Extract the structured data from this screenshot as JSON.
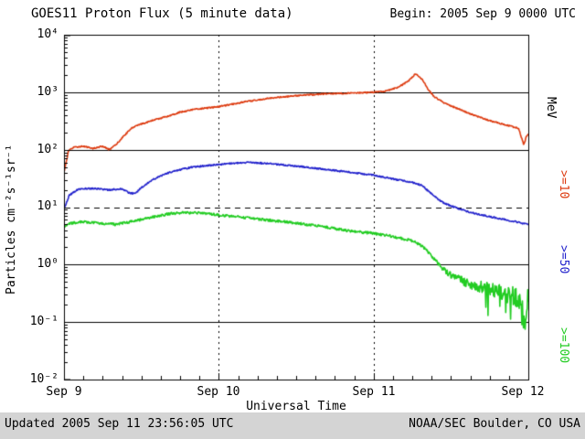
{
  "header": {
    "title": "GOES11 Proton Flux (5 minute data)",
    "begin_label": "Begin: 2005 Sep 9 0000 UTC"
  },
  "axes": {
    "y_title": "Particles cm⁻²s⁻¹sr⁻¹",
    "x_title": "Universal Time",
    "y_ticks": [
      "10⁴",
      "10³",
      "10²",
      "10¹",
      "10⁰",
      "10⁻¹",
      "10⁻²"
    ],
    "x_ticks": [
      "Sep 9",
      "Sep 10",
      "Sep 11",
      "Sep 12"
    ],
    "right_unit": "MeV"
  },
  "footer": {
    "updated": "Updated 2005 Sep 11 23:56:05 UTC",
    "source": "NOAA/SEC Boulder, CO USA"
  },
  "chart_data": {
    "type": "line",
    "title": "GOES11 Proton Flux (5 minute data)",
    "xlabel": "Universal Time",
    "ylabel": "Particles cm-2 s-1 sr-1",
    "x_unit": "hours since 2005-09-09 00:00 UTC",
    "x_range": [
      0,
      72
    ],
    "y_scale": "log",
    "ylim": [
      0.01,
      10000
    ],
    "x_tick_hours": [
      0,
      24,
      48,
      72
    ],
    "x_tick_labels": [
      "Sep 9",
      "Sep 10",
      "Sep 11",
      "Sep 12"
    ],
    "grid": {
      "solid_lines": [
        1000,
        100,
        1,
        0.1
      ],
      "dashed_line": 10,
      "day_boundaries": [
        24,
        48
      ]
    },
    "series": [
      {
        "name": ">=10 MeV",
        "label": ">=10",
        "color": "#dd3b10",
        "x": [
          0,
          0.7,
          1.5,
          3,
          4.5,
          6,
          7,
          8,
          9,
          10.5,
          12,
          14,
          16,
          18,
          20,
          24,
          28,
          32,
          36,
          40,
          44,
          48,
          50,
          52,
          53.5,
          54.5,
          55.5,
          56.5,
          57.5,
          59,
          61,
          63,
          66,
          68.5,
          70.5,
          71.3,
          71.7,
          72
        ],
        "y": [
          40,
          95,
          110,
          115,
          105,
          115,
          100,
          120,
          160,
          240,
          280,
          330,
          380,
          450,
          500,
          560,
          680,
          790,
          870,
          930,
          960,
          1000,
          1050,
          1250,
          1600,
          2100,
          1700,
          1100,
          820,
          650,
          520,
          420,
          320,
          270,
          235,
          120,
          170,
          185
        ]
      },
      {
        "name": ">=50 MeV",
        "label": ">=50",
        "color": "#2222cc",
        "x": [
          0,
          0.8,
          2,
          3,
          5,
          7,
          9,
          10,
          11,
          12,
          14,
          16,
          18,
          20,
          23,
          26,
          29,
          32,
          36,
          40,
          44,
          48,
          51,
          54,
          55.5,
          57,
          58.5,
          60,
          62,
          64,
          67,
          70,
          72
        ],
        "y": [
          9,
          16,
          20,
          21,
          21,
          20,
          21,
          18,
          17,
          22,
          31,
          39,
          45,
          50,
          54,
          58,
          60,
          57,
          52,
          46,
          41,
          36,
          31,
          27,
          24,
          17,
          12.5,
          10.5,
          8.8,
          7.6,
          6.5,
          5.6,
          5.0
        ]
      },
      {
        "name": ">=100 MeV",
        "label": ">=100",
        "color": "#22cc22",
        "x": [
          0,
          1,
          2.5,
          5,
          8,
          10,
          12,
          14,
          16,
          18,
          21,
          24,
          28,
          32,
          36,
          40,
          44,
          48,
          51,
          54,
          55,
          56,
          57,
          58,
          59,
          60,
          62,
          64,
          66,
          68,
          70,
          71,
          71.5,
          72
        ],
        "y": [
          4.5,
          5.2,
          5.6,
          5.3,
          5.0,
          5.5,
          6.1,
          6.8,
          7.6,
          8.0,
          7.9,
          7.3,
          6.6,
          5.9,
          5.3,
          4.6,
          3.9,
          3.5,
          3.1,
          2.6,
          2.3,
          1.9,
          1.4,
          1.05,
          0.8,
          0.66,
          0.52,
          0.44,
          0.38,
          0.34,
          0.3,
          0.22,
          0.07,
          0.35
        ]
      }
    ]
  }
}
